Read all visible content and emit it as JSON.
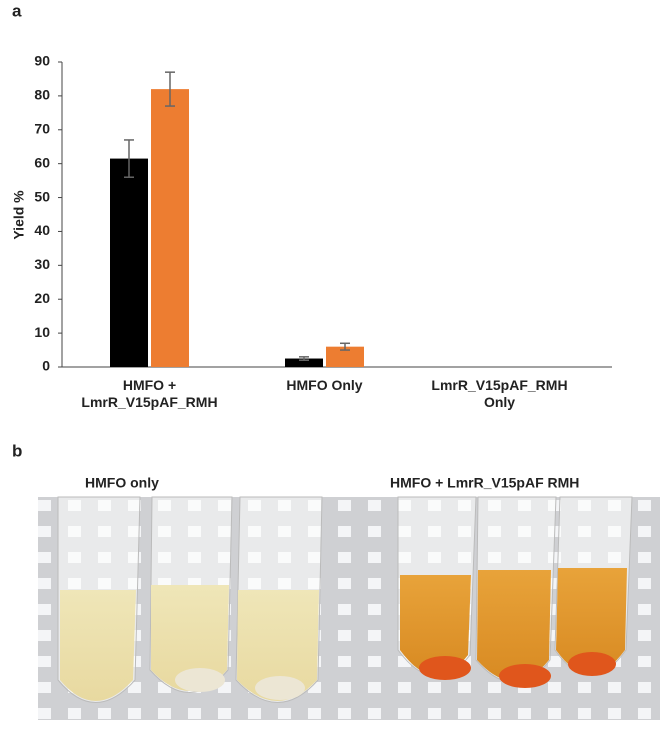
{
  "chart_data": {
    "type": "bar",
    "panel": "a",
    "ylabel": "Yield %",
    "categories": [
      "HMFO +\nLmrR_V15pAF_RMH",
      "HMFO Only",
      "LmrR_V15pAF_RMH\nOnly"
    ],
    "series": [
      {
        "color": "#000000",
        "values": [
          61.5,
          2.5,
          0
        ],
        "errors": [
          5.5,
          0.5,
          0
        ]
      },
      {
        "color": "#ed7d31",
        "values": [
          82,
          6,
          0
        ],
        "errors": [
          5,
          1,
          0
        ]
      }
    ],
    "ylim": [
      0,
      90
    ],
    "yticks": [
      0,
      10,
      20,
      30,
      40,
      50,
      60,
      70,
      80,
      90
    ],
    "grid": false
  },
  "photo": {
    "panel": "b",
    "labels": [
      "HMFO only",
      "HMFO + LmrR_V15pAF RMH"
    ]
  }
}
